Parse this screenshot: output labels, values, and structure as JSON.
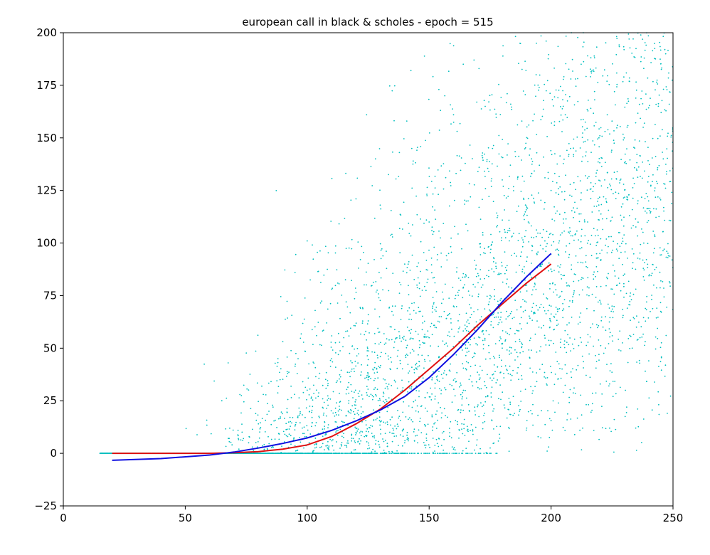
{
  "chart_data": {
    "type": "scatter",
    "title": "european call in black & scholes - epoch = 515",
    "xlabel": "",
    "ylabel": "",
    "xlim": [
      0,
      250
    ],
    "ylim": [
      -25,
      200
    ],
    "x_ticks": [
      0,
      50,
      100,
      150,
      200,
      250
    ],
    "y_ticks": [
      -25,
      0,
      25,
      50,
      75,
      100,
      125,
      150,
      175,
      200
    ],
    "x_tick_labels": [
      "0",
      "50",
      "100",
      "150",
      "200",
      "250"
    ],
    "y_tick_labels": [
      "−25",
      "0",
      "25",
      "50",
      "75",
      "100",
      "125",
      "150",
      "175",
      "200"
    ],
    "grid": false,
    "legend": "none",
    "series": [
      {
        "kind": "scatter",
        "color": "#00bfbf",
        "description_of_distribution": "samples of discounted payoff max(S_T - K, 0) vs S_0; zero-floored band at y=0 for x≈15-180, cloud widening with x",
        "points": [
          [
            95,
            86
          ],
          [
            100,
            101
          ],
          [
            120,
            121
          ],
          [
            128,
            140
          ],
          [
            154,
            173
          ],
          [
            160,
            161
          ],
          [
            164,
            185
          ],
          [
            170,
            134
          ],
          [
            176,
            145
          ],
          [
            182,
            171
          ],
          [
            188,
            158
          ],
          [
            194,
            195
          ],
          [
            198,
            196
          ],
          [
            205,
            165
          ],
          [
            210,
            178
          ],
          [
            215,
            189
          ],
          [
            220,
            151
          ],
          [
            226,
            172
          ],
          [
            232,
            197
          ],
          [
            238,
            183
          ],
          [
            244,
            165
          ],
          [
            247,
            190
          ],
          [
            231,
            22
          ],
          [
            224,
            33
          ],
          [
            205,
            29
          ],
          [
            199,
            3
          ],
          [
            190,
            12
          ],
          [
            185,
            19
          ],
          [
            176,
            23
          ],
          [
            168,
            9
          ],
          [
            160,
            2
          ],
          [
            152,
            14
          ],
          [
            144,
            6
          ],
          [
            137,
            31
          ],
          [
            130,
            46
          ],
          [
            124,
            58
          ],
          [
            118,
            39
          ],
          [
            112,
            24
          ],
          [
            105,
            17
          ],
          [
            98,
            12
          ],
          [
            92,
            8
          ],
          [
            86,
            22
          ],
          [
            80,
            14
          ],
          [
            76,
            5
          ],
          [
            72,
            2
          ],
          [
            65,
            25
          ],
          [
            140,
            90
          ],
          [
            150,
            110
          ],
          [
            158,
            95
          ],
          [
            166,
            120
          ],
          [
            172,
            105
          ],
          [
            180,
            130
          ],
          [
            186,
            115
          ],
          [
            192,
            140
          ],
          [
            200,
            125
          ],
          [
            208,
            145
          ],
          [
            215,
            110
          ],
          [
            222,
            130
          ],
          [
            230,
            150
          ],
          [
            240,
            120
          ],
          [
            246,
            140
          ],
          [
            135,
            70
          ],
          [
            145,
            80
          ],
          [
            155,
            65
          ],
          [
            165,
            85
          ],
          [
            175,
            75
          ],
          [
            185,
            95
          ],
          [
            195,
            60
          ],
          [
            210,
            85
          ],
          [
            225,
            70
          ],
          [
            238,
            100
          ],
          [
            115,
            55
          ],
          [
            110,
            45
          ],
          [
            125,
            35
          ],
          [
            135,
            25
          ],
          [
            145,
            40
          ],
          [
            155,
            30
          ],
          [
            165,
            50
          ],
          [
            175,
            45
          ],
          [
            120,
            10
          ],
          [
            130,
            15
          ],
          [
            140,
            5
          ],
          [
            100,
            30
          ],
          [
            108,
            62
          ],
          [
            116,
            72
          ],
          [
            92,
            38
          ],
          [
            88,
            45
          ],
          [
            82,
            28
          ],
          [
            150,
            55
          ],
          [
            160,
            70
          ],
          [
            170,
            60
          ],
          [
            180,
            50
          ],
          [
            190,
            80
          ],
          [
            200,
            70
          ],
          [
            212,
            55
          ],
          [
            220,
            95
          ],
          [
            235,
            60
          ],
          [
            245,
            82
          ]
        ]
      },
      {
        "kind": "line",
        "color": "#e01010",
        "x": [
          20,
          40,
          60,
          70,
          80,
          90,
          100,
          110,
          120,
          130,
          140,
          150,
          160,
          170,
          180,
          190,
          200
        ],
        "y": [
          0,
          0,
          0,
          0.3,
          0.8,
          2,
          4,
          8,
          14,
          21,
          30,
          40,
          50,
          61,
          71,
          81,
          90
        ]
      },
      {
        "kind": "line",
        "color": "#1010e0",
        "x": [
          20,
          40,
          60,
          70,
          80,
          90,
          100,
          110,
          120,
          130,
          140,
          150,
          160,
          170,
          180,
          190,
          200
        ],
        "y": [
          -3.3,
          -2.5,
          -0.8,
          0.6,
          2.5,
          4.7,
          7.3,
          10.9,
          15.4,
          20.6,
          27,
          36,
          47,
          59,
          72,
          84,
          95
        ]
      }
    ]
  }
}
